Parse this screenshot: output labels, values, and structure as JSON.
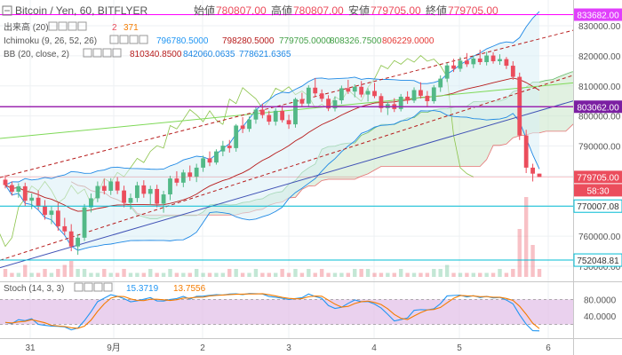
{
  "header": {
    "symbol": "Bitcoin / Yen, 60, BITFLYER",
    "open_label": "始値",
    "open": "780807.00",
    "high_label": "高値",
    "high": "780807.00",
    "low_label": "安値",
    "low": "779705.00",
    "close_label": "終値",
    "close": "779705.00"
  },
  "indicators": {
    "volume": {
      "label": "出来高 (20)",
      "v1": "2",
      "v2": "371"
    },
    "ichimoku": {
      "label": "Ichimoku (9, 26, 52, 26)",
      "v1": "796780.5000",
      "v2": "798280.5000",
      "v3": "779705.0000",
      "v4": "808326.7500",
      "v5": "806229.0000"
    },
    "bb": {
      "label": "BB (20, close, 2)",
      "v1": "810340.8500",
      "v2": "842060.0635",
      "v3": "778621.6365"
    },
    "stoch": {
      "label": "Stoch (14, 3, 3)",
      "v1": "15.3719",
      "v2": "13.7556"
    }
  },
  "price_axis": {
    "ticks": [
      "830000.00",
      "820000.00",
      "810000.00",
      "800000.00",
      "790000.00",
      "780000.00",
      "770000.00",
      "760000.00",
      "750000.00"
    ],
    "badges": {
      "high": "833682.00",
      "level": "803062.00",
      "last": "779705.00",
      "countdown": "58:30",
      "support": "770007.08",
      "low": "752048.81"
    }
  },
  "stoch_axis": {
    "ticks": [
      "80.0000",
      "40.0000"
    ]
  },
  "time_axis": {
    "ticks": [
      "31",
      "9月",
      "2",
      "3",
      "4",
      "5",
      "6"
    ]
  },
  "colors": {
    "up": "#53b987",
    "down": "#eb4d5c",
    "level_line": "#9c27b0",
    "trend_line": "#3f51b5",
    "channel": "#b71c1c",
    "stoch_k": "#2196f3",
    "stoch_d": "#f57c00",
    "stoch_band": "#e1bee7",
    "cloud_up": "#c8e6c9",
    "cloud_down": "#f8bbd0",
    "bb_band": "#d8eef5",
    "cyan_line": "#00bcd4"
  },
  "chart_data": {
    "type": "candlestick",
    "timeframe": "60",
    "x_ticks": [
      "31",
      "9月",
      "2",
      "3",
      "4",
      "5",
      "6"
    ],
    "ylim": [
      748000,
      836000
    ],
    "candles": [
      [
        778800,
        780300,
        775900,
        777000
      ],
      [
        777000,
        778200,
        773500,
        774800
      ],
      [
        774800,
        777600,
        772800,
        776600
      ],
      [
        776600,
        777800,
        770000,
        771800
      ],
      [
        771800,
        774200,
        769000,
        772800
      ],
      [
        772800,
        775200,
        768800,
        769900
      ],
      [
        769900,
        772000,
        765500,
        767100
      ],
      [
        767100,
        769800,
        764000,
        768500
      ],
      [
        768500,
        771000,
        761800,
        763300
      ],
      [
        763300,
        766100,
        760300,
        761600
      ],
      [
        761600,
        764000,
        755000,
        756600
      ],
      [
        756600,
        760700,
        753800,
        759500
      ],
      [
        759500,
        770700,
        758400,
        769600
      ],
      [
        769600,
        774200,
        767900,
        772600
      ],
      [
        772600,
        778200,
        771300,
        776700
      ],
      [
        776700,
        779100,
        773900,
        775100
      ],
      [
        775100,
        779300,
        773700,
        778200
      ],
      [
        778200,
        779600,
        774000,
        775200
      ],
      [
        775200,
        776800,
        769600,
        771100
      ],
      [
        771100,
        774200,
        768900,
        772700
      ],
      [
        772700,
        778100,
        771300,
        776900
      ],
      [
        776900,
        778600,
        772800,
        774100
      ],
      [
        774100,
        776800,
        770400,
        775700
      ],
      [
        775700,
        777100,
        769600,
        770800
      ],
      [
        770800,
        775100,
        767800,
        773900
      ],
      [
        773900,
        780100,
        772000,
        779200
      ],
      [
        779200,
        781600,
        776700,
        777800
      ],
      [
        777800,
        782100,
        776300,
        781200
      ],
      [
        781200,
        783500,
        778400,
        779800
      ],
      [
        779800,
        784100,
        778000,
        782800
      ],
      [
        782800,
        786800,
        781400,
        785900
      ],
      [
        785900,
        788200,
        783300,
        784500
      ],
      [
        784500,
        788900,
        783800,
        788200
      ],
      [
        788200,
        791700,
        786600,
        790100
      ],
      [
        790100,
        792000,
        787800,
        789300
      ],
      [
        789300,
        797300,
        788100,
        796800
      ],
      [
        796800,
        799600,
        794300,
        795700
      ],
      [
        795700,
        799800,
        794700,
        798800
      ],
      [
        798800,
        803200,
        797400,
        802100
      ],
      [
        802100,
        804100,
        799200,
        800300
      ],
      [
        800300,
        801700,
        797000,
        798100
      ],
      [
        798100,
        802600,
        796800,
        801700
      ],
      [
        801700,
        803500,
        797800,
        798600
      ],
      [
        798600,
        800400,
        795700,
        797200
      ],
      [
        797200,
        806100,
        796100,
        805600
      ],
      [
        805600,
        807700,
        803000,
        804100
      ],
      [
        804100,
        810200,
        803200,
        809400
      ],
      [
        809400,
        812600,
        806300,
        807500
      ],
      [
        807500,
        808800,
        804700,
        805700
      ],
      [
        805700,
        806900,
        801600,
        802500
      ],
      [
        802500,
        806500,
        801500,
        805200
      ],
      [
        805200,
        810100,
        804000,
        809200
      ],
      [
        809200,
        812000,
        807300,
        808100
      ],
      [
        808100,
        810500,
        806200,
        809700
      ],
      [
        809700,
        811600,
        806200,
        807100
      ],
      [
        807100,
        809200,
        804800,
        808300
      ],
      [
        808300,
        811000,
        805900,
        806600
      ],
      [
        806600,
        807500,
        801200,
        802600
      ],
      [
        802600,
        804700,
        800300,
        803900
      ],
      [
        803900,
        805900,
        801300,
        802300
      ],
      [
        802300,
        807300,
        801500,
        806400
      ],
      [
        806400,
        808200,
        804000,
        805100
      ],
      [
        805100,
        809500,
        804300,
        808600
      ],
      [
        808600,
        811200,
        805800,
        806700
      ],
      [
        806700,
        808300,
        803000,
        804900
      ],
      [
        804900,
        810300,
        804100,
        809500
      ],
      [
        809500,
        813500,
        808000,
        812400
      ],
      [
        812400,
        817700,
        811300,
        816800
      ],
      [
        816800,
        819000,
        814600,
        815700
      ],
      [
        815700,
        819600,
        814700,
        818400
      ],
      [
        818400,
        820900,
        816300,
        817200
      ],
      [
        817200,
        820100,
        815900,
        819100
      ],
      [
        819100,
        822000,
        817000,
        817900
      ],
      [
        817900,
        821300,
        816800,
        820100
      ],
      [
        820100,
        821200,
        817400,
        818200
      ],
      [
        818200,
        820500,
        817000,
        818900
      ],
      [
        818900,
        819600,
        815600,
        816700
      ],
      [
        816700,
        818200,
        812000,
        813000
      ],
      [
        813000,
        814400,
        792000,
        793500
      ],
      [
        793500,
        795400,
        781000,
        782800
      ],
      [
        782800,
        784100,
        778200,
        780800
      ],
      [
        780807,
        780807,
        779705,
        779705
      ]
    ],
    "volume": [
      2,
      1,
      1,
      3,
      1,
      1,
      2,
      1,
      2,
      3,
      4,
      2,
      2,
      1,
      1,
      2,
      1,
      1,
      2,
      1,
      1,
      1,
      2,
      1,
      1,
      2,
      1,
      1,
      1,
      2,
      1,
      1,
      1,
      1,
      2,
      2,
      1,
      1,
      2,
      1,
      1,
      1,
      2,
      1,
      2,
      1,
      2,
      1,
      2,
      1,
      1,
      1,
      1,
      2,
      2,
      2,
      1,
      1,
      1,
      1,
      2,
      1,
      1,
      1,
      1,
      2,
      2,
      3,
      1,
      1,
      1,
      1,
      1,
      1,
      1,
      2,
      1,
      2,
      12,
      20,
      8,
      2
    ]
  }
}
